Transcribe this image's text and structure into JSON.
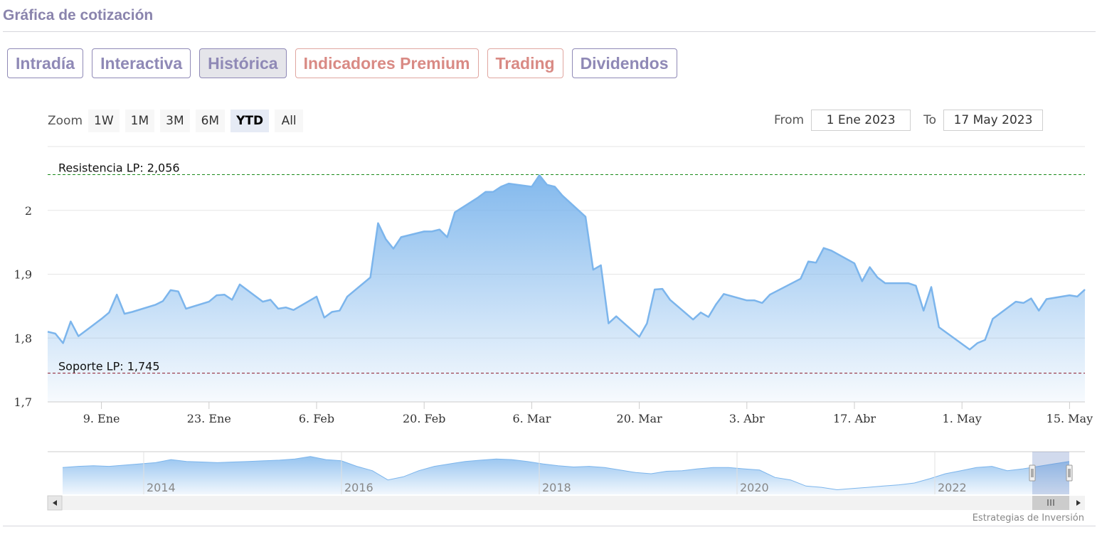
{
  "header": {
    "title": "Gráfica de cotización"
  },
  "tabs": [
    {
      "label": "Intradía",
      "state": "normal"
    },
    {
      "label": "Interactiva",
      "state": "normal"
    },
    {
      "label": "Histórica",
      "state": "active"
    },
    {
      "label": "Indicadores Premium",
      "state": "premium"
    },
    {
      "label": "Trading",
      "state": "premium"
    },
    {
      "label": "Dividendos",
      "state": "normal"
    }
  ],
  "range_selector": {
    "zoom_label": "Zoom",
    "buttons": [
      "1W",
      "1M",
      "3M",
      "6M",
      "YTD",
      "All"
    ],
    "selected": "YTD",
    "from_label": "From",
    "from_value": "1 Ene 2023",
    "to_label": "To",
    "to_value": "17 May 2023"
  },
  "colors": {
    "accent": "#8f89b6",
    "premium": "#d98a84",
    "line": "#7cb5ec",
    "resistance": "#1a8a1a",
    "support": "#8b1a2b"
  },
  "credits": "Estrategias de Inversión",
  "chart_data": {
    "type": "area",
    "x_start": "2023-01-02",
    "x_end": "2023-05-17",
    "x_ticks": [
      {
        "date": "2023-01-09",
        "label": "9. Ene"
      },
      {
        "date": "2023-01-23",
        "label": "23. Ene"
      },
      {
        "date": "2023-02-06",
        "label": "6. Feb"
      },
      {
        "date": "2023-02-20",
        "label": "20. Feb"
      },
      {
        "date": "2023-03-06",
        "label": "6. Mar"
      },
      {
        "date": "2023-03-20",
        "label": "20. Mar"
      },
      {
        "date": "2023-04-03",
        "label": "3. Abr"
      },
      {
        "date": "2023-04-17",
        "label": "17. Abr"
      },
      {
        "date": "2023-05-01",
        "label": "1. May"
      },
      {
        "date": "2023-05-15",
        "label": "15. May"
      }
    ],
    "y_ticks": [
      {
        "value": 1.7,
        "label": "1,7"
      },
      {
        "value": 1.8,
        "label": "1,8"
      },
      {
        "value": 1.9,
        "label": "1,9"
      },
      {
        "value": 2.0,
        "label": "2"
      }
    ],
    "ylim": [
      1.7,
      2.1
    ],
    "grid": true,
    "plot_lines": [
      {
        "label": "Resistencia LP: 2,056",
        "value": 2.056,
        "style": "dashed",
        "color": "#1a8a1a"
      },
      {
        "label": "Soporte LP: 1,745",
        "value": 1.745,
        "style": "dashed",
        "color": "#8b1a2b"
      }
    ],
    "series": [
      {
        "points": [
          [
            "2023-01-02",
            1.81
          ],
          [
            "2023-01-03",
            1.807
          ],
          [
            "2023-01-04",
            1.792
          ],
          [
            "2023-01-05",
            1.826
          ],
          [
            "2023-01-06",
            1.803
          ],
          [
            "2023-01-09",
            1.83
          ],
          [
            "2023-01-10",
            1.84
          ],
          [
            "2023-01-11",
            1.868
          ],
          [
            "2023-01-12",
            1.838
          ],
          [
            "2023-01-13",
            1.841
          ],
          [
            "2023-01-16",
            1.852
          ],
          [
            "2023-01-17",
            1.858
          ],
          [
            "2023-01-18",
            1.875
          ],
          [
            "2023-01-19",
            1.873
          ],
          [
            "2023-01-20",
            1.846
          ],
          [
            "2023-01-23",
            1.857
          ],
          [
            "2023-01-24",
            1.867
          ],
          [
            "2023-01-25",
            1.868
          ],
          [
            "2023-01-26",
            1.86
          ],
          [
            "2023-01-27",
            1.884
          ],
          [
            "2023-01-30",
            1.857
          ],
          [
            "2023-01-31",
            1.86
          ],
          [
            "2023-02-01",
            1.846
          ],
          [
            "2023-02-02",
            1.848
          ],
          [
            "2023-02-03",
            1.844
          ],
          [
            "2023-02-06",
            1.865
          ],
          [
            "2023-02-07",
            1.832
          ],
          [
            "2023-02-08",
            1.841
          ],
          [
            "2023-02-09",
            1.843
          ],
          [
            "2023-02-10",
            1.865
          ],
          [
            "2023-02-13",
            1.895
          ],
          [
            "2023-02-14",
            1.98
          ],
          [
            "2023-02-15",
            1.955
          ],
          [
            "2023-02-16",
            1.94
          ],
          [
            "2023-02-17",
            1.958
          ],
          [
            "2023-02-20",
            1.967
          ],
          [
            "2023-02-21",
            1.967
          ],
          [
            "2023-02-22",
            1.97
          ],
          [
            "2023-02-23",
            1.958
          ],
          [
            "2023-02-24",
            1.997
          ],
          [
            "2023-02-27",
            2.02
          ],
          [
            "2023-02-28",
            2.029
          ],
          [
            "2023-03-01",
            2.029
          ],
          [
            "2023-03-02",
            2.037
          ],
          [
            "2023-03-03",
            2.042
          ],
          [
            "2023-03-06",
            2.037
          ],
          [
            "2023-03-07",
            2.055
          ],
          [
            "2023-03-08",
            2.04
          ],
          [
            "2023-03-09",
            2.037
          ],
          [
            "2023-03-10",
            2.023
          ],
          [
            "2023-03-13",
            1.99
          ],
          [
            "2023-03-14",
            1.907
          ],
          [
            "2023-03-15",
            1.914
          ],
          [
            "2023-03-16",
            1.823
          ],
          [
            "2023-03-17",
            1.834
          ],
          [
            "2023-03-20",
            1.802
          ],
          [
            "2023-03-21",
            1.823
          ],
          [
            "2023-03-22",
            1.876
          ],
          [
            "2023-03-23",
            1.877
          ],
          [
            "2023-03-24",
            1.86
          ],
          [
            "2023-03-27",
            1.829
          ],
          [
            "2023-03-28",
            1.84
          ],
          [
            "2023-03-29",
            1.833
          ],
          [
            "2023-03-30",
            1.853
          ],
          [
            "2023-03-31",
            1.869
          ],
          [
            "2023-04-03",
            1.859
          ],
          [
            "2023-04-04",
            1.859
          ],
          [
            "2023-04-05",
            1.855
          ],
          [
            "2023-04-06",
            1.868
          ],
          [
            "2023-04-10",
            1.893
          ],
          [
            "2023-04-11",
            1.92
          ],
          [
            "2023-04-12",
            1.918
          ],
          [
            "2023-04-13",
            1.941
          ],
          [
            "2023-04-14",
            1.937
          ],
          [
            "2023-04-17",
            1.917
          ],
          [
            "2023-04-18",
            1.889
          ],
          [
            "2023-04-19",
            1.911
          ],
          [
            "2023-04-20",
            1.895
          ],
          [
            "2023-04-21",
            1.886
          ],
          [
            "2023-04-24",
            1.886
          ],
          [
            "2023-04-25",
            1.882
          ],
          [
            "2023-04-26",
            1.843
          ],
          [
            "2023-04-27",
            1.88
          ],
          [
            "2023-04-28",
            1.817
          ],
          [
            "2023-05-02",
            1.782
          ],
          [
            "2023-05-03",
            1.792
          ],
          [
            "2023-05-04",
            1.797
          ],
          [
            "2023-05-05",
            1.83
          ],
          [
            "2023-05-08",
            1.857
          ],
          [
            "2023-05-09",
            1.855
          ],
          [
            "2023-05-10",
            1.862
          ],
          [
            "2023-05-11",
            1.843
          ],
          [
            "2023-05-12",
            1.861
          ],
          [
            "2023-05-15",
            1.867
          ],
          [
            "2023-05-16",
            1.865
          ],
          [
            "2023-05-17",
            1.876
          ]
        ]
      }
    ]
  },
  "navigator": {
    "year_labels": [
      "2014",
      "2016",
      "2018",
      "2020",
      "2022"
    ],
    "history_levels": [
      1.6,
      1.62,
      1.63,
      1.62,
      1.64,
      1.66,
      1.68,
      1.73,
      1.7,
      1.69,
      1.68,
      1.69,
      1.7,
      1.71,
      1.72,
      1.74,
      1.78,
      1.73,
      1.71,
      1.62,
      1.55,
      1.4,
      1.45,
      1.55,
      1.62,
      1.66,
      1.7,
      1.72,
      1.74,
      1.73,
      1.7,
      1.66,
      1.63,
      1.61,
      1.62,
      1.6,
      1.56,
      1.52,
      1.5,
      1.54,
      1.55,
      1.58,
      1.6,
      1.6,
      1.58,
      1.56,
      1.44,
      1.4,
      1.3,
      1.28,
      1.24,
      1.26,
      1.28,
      1.3,
      1.32,
      1.35,
      1.42,
      1.5,
      1.55,
      1.6,
      1.62,
      1.55,
      1.58,
      1.62,
      1.66,
      1.7
    ]
  }
}
